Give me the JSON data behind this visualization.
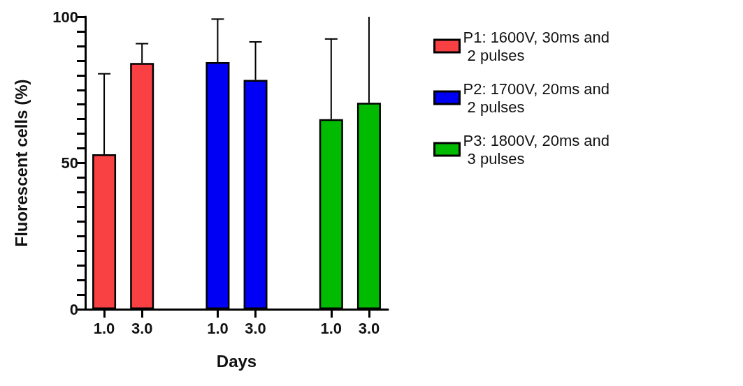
{
  "chart_data": {
    "type": "bar",
    "xlabel": "Days",
    "ylabel": "Fluorescent cells (%)",
    "categories": [
      "1.0",
      "3.0",
      null,
      "1.0",
      "3.0",
      null,
      "1.0",
      "3.0"
    ],
    "series": [
      {
        "name": "P1: 1600V, 30ms and 2 pulses",
        "color": "#f94144",
        "values": [
          53,
          84.2,
          null,
          null,
          null,
          null,
          null,
          null
        ],
        "errors": [
          [
            53,
            80.5
          ],
          [
            84.2,
            90.8
          ],
          null,
          null,
          null,
          null,
          null,
          null
        ]
      },
      {
        "name": "P2: 1700V, 20ms and 2 pulses",
        "color": "#0000f5",
        "values": [
          null,
          null,
          null,
          84.5,
          78.4,
          null,
          null,
          null
        ],
        "errors": [
          null,
          null,
          null,
          [
            84.5,
            99.2
          ],
          [
            78.4,
            91.4
          ],
          null,
          null,
          null
        ]
      },
      {
        "name": "P3: 1800V, 20ms and 3 pulses",
        "color": "#00bb00",
        "values": [
          null,
          null,
          null,
          null,
          null,
          null,
          65,
          70.6
        ],
        "errors": [
          null,
          null,
          null,
          null,
          null,
          null,
          [
            65,
            92.4
          ],
          [
            70.6,
            100
          ]
        ]
      }
    ],
    "ylim": [
      0,
      100
    ],
    "yticks": [
      0,
      {
        "value": 5,
        "label": null
      },
      {
        "value": 10,
        "label": null
      },
      {
        "value": 15,
        "label": null
      },
      {
        "value": 20,
        "label": null
      },
      {
        "value": 25,
        "label": null
      },
      {
        "value": 30,
        "label": null
      },
      {
        "value": 35,
        "label": null
      },
      {
        "value": 40,
        "label": null
      },
      {
        "value": 45,
        "label": null
      },
      50,
      {
        "value": 55,
        "label": null
      },
      {
        "value": 60,
        "label": null
      },
      {
        "value": 65,
        "label": null
      },
      {
        "value": 70,
        "label": null
      },
      {
        "value": 75,
        "label": null
      },
      {
        "value": 80,
        "label": null
      },
      {
        "value": 85,
        "label": null
      },
      {
        "value": 90,
        "label": null
      },
      {
        "value": 95,
        "label": null
      },
      100
    ],
    "grid": false,
    "legend": "right"
  }
}
